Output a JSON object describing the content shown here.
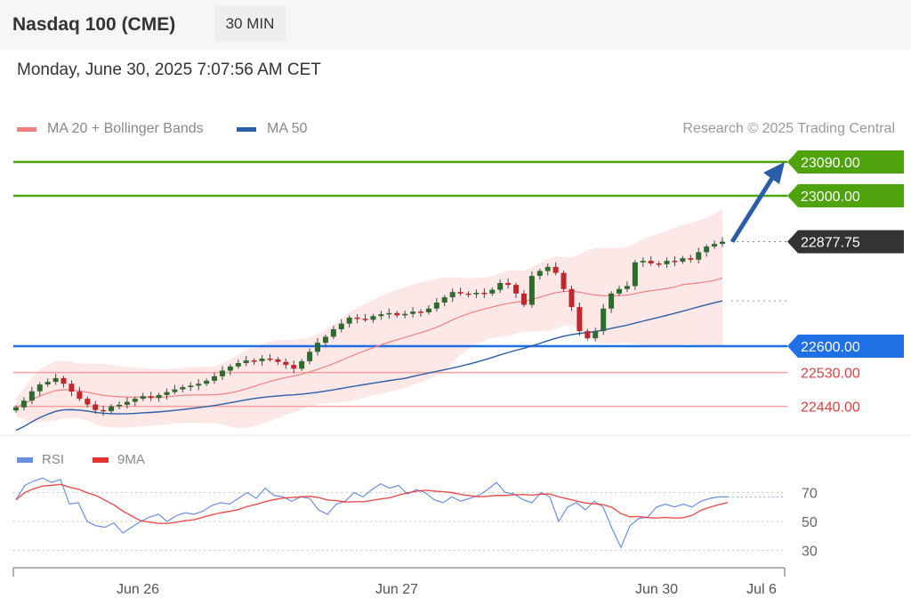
{
  "header": {
    "title": "Nasdaq 100 (CME)",
    "timeframe": "30 MIN"
  },
  "timestamp": "Monday, June 30, 2025 7:07:56 AM CET",
  "legend": {
    "ma20": "MA 20 + Bollinger Bands",
    "ma50": "MA 50",
    "rsi": "RSI",
    "rsi_ma": "9MA"
  },
  "credit": "Research © 2025 Trading Central",
  "colors": {
    "ma20": "#f08080",
    "ma50": "#2b5da8",
    "band": "#fde2e2",
    "up": "#2e6b2e",
    "down": "#c0282d",
    "resistance": "#4ea30c",
    "support": "#1f6fe5",
    "minor": "#e04040",
    "rsi": "#6b8fe0",
    "rsi_ma": "#e53030"
  },
  "chart_data": [
    {
      "type": "candlestick",
      "ylim": [
        22380,
        23120
      ],
      "levels": [
        {
          "value": 23090,
          "label": "23090.00",
          "kind": "resistance"
        },
        {
          "value": 23000,
          "label": "23000.00",
          "kind": "resistance"
        },
        {
          "value": 22877.75,
          "label": "22877.75",
          "kind": "last"
        },
        {
          "value": 22600,
          "label": "22600.00",
          "kind": "support"
        },
        {
          "value": 22530,
          "label": "22530.00",
          "kind": "minor"
        },
        {
          "value": 22440,
          "label": "22440.00",
          "kind": "minor"
        }
      ],
      "target_arrow": {
        "from": 22877.75,
        "to": 23090
      },
      "closes": [
        22437,
        22455,
        22480,
        22498,
        22505,
        22515,
        22500,
        22479,
        22460,
        22445,
        22430,
        22427,
        22440,
        22444,
        22452,
        22460,
        22467,
        22462,
        22470,
        22478,
        22485,
        22491,
        22495,
        22500,
        22508,
        22520,
        22535,
        22546,
        22555,
        22562,
        22560,
        22567,
        22565,
        22558,
        22550,
        22540,
        22560,
        22585,
        22609,
        22625,
        22645,
        22660,
        22676,
        22673,
        22670,
        22680,
        22685,
        22688,
        22682,
        22686,
        22692,
        22690,
        22700,
        22716,
        22730,
        22744,
        22740,
        22738,
        22742,
        22740,
        22750,
        22768,
        22763,
        22740,
        22710,
        22787,
        22800,
        22811,
        22795,
        22752,
        22704,
        22640,
        22621,
        22640,
        22700,
        22740,
        22752,
        22760,
        22823,
        22827,
        22820,
        22818,
        22827,
        22825,
        22834,
        22830,
        22850,
        22865,
        22872,
        22878
      ]
    },
    {
      "type": "line",
      "ylim": [
        20,
        85
      ],
      "yticks": [
        "70",
        "50",
        "30"
      ],
      "xticks": [
        "Jun 26",
        "Jun 27",
        "Jun 30",
        "Jul 6"
      ],
      "rsi": [
        65,
        75,
        78,
        80,
        77,
        79,
        62,
        63,
        50,
        47,
        46,
        49,
        42,
        46,
        50,
        53,
        55,
        50,
        54,
        56,
        55,
        57,
        61,
        63,
        62,
        66,
        70,
        66,
        73,
        68,
        67,
        64,
        67,
        66,
        58,
        55,
        62,
        64,
        70,
        67,
        72,
        76,
        73,
        75,
        69,
        72,
        70,
        65,
        63,
        67,
        64,
        66,
        68,
        72,
        77,
        70,
        69,
        65,
        63,
        70,
        67,
        50,
        60,
        63,
        58,
        64,
        60,
        45,
        32,
        47,
        52,
        53,
        60,
        62,
        60,
        62,
        60,
        64,
        66,
        67,
        67
      ]
    }
  ]
}
